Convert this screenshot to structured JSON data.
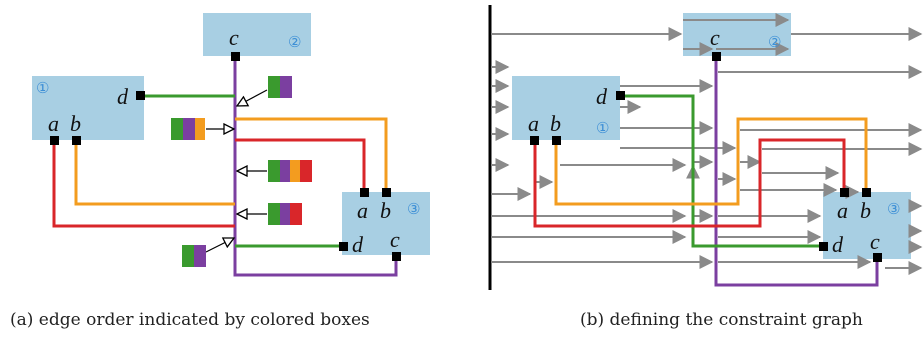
{
  "colors": {
    "node_fill": "#a8cfe3",
    "green": "#3a9a2e",
    "purple": "#7b3fa0",
    "orange": "#f39c1f",
    "red": "#d9262a",
    "gray": "#8a8a8a",
    "node_number": "#3d8fd6"
  },
  "panel_a": {
    "caption": "(a) edge order indicated by colored boxes",
    "nodes": [
      {
        "number": "①",
        "ports": [
          "d",
          "a",
          "b"
        ]
      },
      {
        "number": "②",
        "ports": [
          "c"
        ]
      },
      {
        "number": "③",
        "ports": [
          "a",
          "b",
          "d",
          "c"
        ]
      }
    ],
    "order_boxes": [
      [
        "green",
        "purple"
      ],
      [
        "green",
        "purple",
        "orange"
      ],
      [
        "green",
        "purple",
        "orange",
        "red"
      ],
      [
        "green",
        "purple",
        "red"
      ],
      [
        "green",
        "purple"
      ]
    ]
  },
  "panel_b": {
    "caption": "(b) defining the constraint graph",
    "nodes": [
      {
        "number": "②",
        "ports": [
          "c"
        ]
      },
      {
        "number": "①",
        "ports": [
          "d",
          "a",
          "b"
        ]
      },
      {
        "number": "③",
        "ports": [
          "a",
          "b",
          "d",
          "c"
        ]
      }
    ]
  }
}
